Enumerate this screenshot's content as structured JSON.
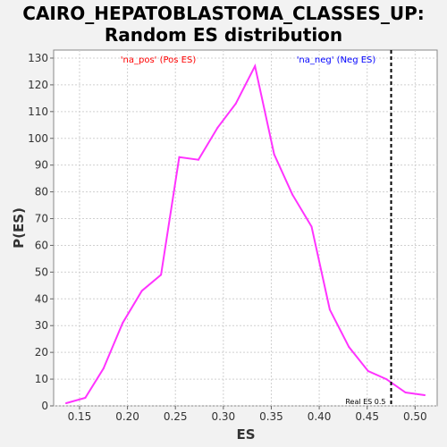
{
  "chart_data": {
    "type": "line",
    "title": [
      "CAIRO_HEPATOBLASTOMA_CLASSES_UP:",
      "Random ES distribution"
    ],
    "xlabel": "ES",
    "ylabel": "P(ES)",
    "xlim": [
      0.123,
      0.523
    ],
    "ylim": [
      0,
      133
    ],
    "x_ticks": [
      0.15,
      0.2,
      0.25,
      0.3,
      0.35,
      0.4,
      0.45,
      0.5
    ],
    "x_tick_labels": [
      "0.15",
      "0.20",
      "0.25",
      "0.30",
      "0.35",
      "0.40",
      "0.45",
      "0.50"
    ],
    "y_ticks": [
      0,
      10,
      20,
      30,
      40,
      50,
      60,
      70,
      80,
      90,
      100,
      110,
      120,
      130
    ],
    "y_tick_labels": [
      "0",
      "10",
      "20",
      "30",
      "40",
      "50",
      "60",
      "70",
      "80",
      "90",
      "100",
      "110",
      "120",
      "130"
    ],
    "grid": true,
    "series": [
      {
        "color": "#ff33ff",
        "x": [
          0.136,
          0.156,
          0.175,
          0.195,
          0.215,
          0.235,
          0.254,
          0.274,
          0.294,
          0.313,
          0.333,
          0.353,
          0.372,
          0.392,
          0.411,
          0.431,
          0.451,
          0.47,
          0.49,
          0.51
        ],
        "y": [
          1,
          3,
          14,
          31,
          43,
          49,
          93,
          92,
          104,
          113,
          127,
          94,
          79,
          67,
          36,
          22,
          13,
          10,
          5,
          4
        ]
      }
    ],
    "annotations": {
      "pos_label": "'na_pos' (Pos ES)",
      "neg_label": "'na_neg' (Neg ES)",
      "real_es_label": "Real ES 0.5",
      "real_es_x": 0.475
    },
    "colors": {
      "pos_label": "#ff0000",
      "neg_label": "#0000ff",
      "real_es_line": "#000000",
      "grid": "#d0d0d0"
    }
  }
}
